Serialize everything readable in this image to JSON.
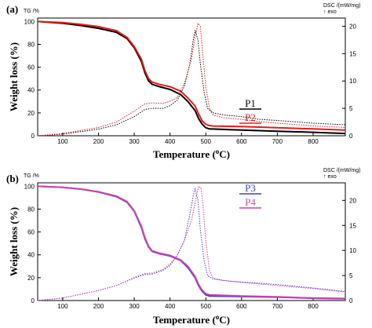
{
  "chart_data": [
    {
      "type": "line",
      "panel_label": "(a)",
      "xlabel_main": "Temperature (",
      "xlabel_sup": "o",
      "xlabel_tail": "C)",
      "ylabel": "Weight loss (%)",
      "left_unit": "TG /%",
      "right_unit": "DSC /(mW/mg)",
      "right_unit2": "↑ exo",
      "xlim": [
        30,
        890
      ],
      "ylim": [
        0,
        103
      ],
      "y2lim": [
        0,
        21.5
      ],
      "x_ticks": [
        "100",
        "200",
        "300",
        "400",
        "500",
        "600",
        "700",
        "800"
      ],
      "y_ticks": [
        "0",
        "20",
        "40",
        "60",
        "80",
        "100"
      ],
      "y2_ticks": [
        "0",
        "5",
        "10",
        "15",
        "20"
      ],
      "series": [
        {
          "name": "P1",
          "color": "#000000",
          "kind": "TG",
          "x": [
            30,
            100,
            150,
            200,
            250,
            280,
            300,
            320,
            330,
            340,
            350,
            370,
            400,
            430,
            450,
            470,
            480,
            490,
            500,
            510,
            600,
            700,
            800,
            890
          ],
          "y": [
            100,
            98.5,
            96.5,
            94,
            90.5,
            85,
            77,
            65,
            55,
            48,
            45,
            43,
            40.5,
            36,
            30,
            22,
            15,
            10,
            7,
            6,
            5,
            4,
            3,
            2
          ]
        },
        {
          "name": "P2",
          "color": "#e41a1c",
          "kind": "TG",
          "x": [
            30,
            100,
            150,
            200,
            250,
            280,
            300,
            320,
            330,
            340,
            350,
            370,
            400,
            430,
            450,
            470,
            480,
            490,
            500,
            510,
            520,
            600,
            700,
            800,
            890
          ],
          "y": [
            100,
            99,
            97.5,
            95.5,
            92,
            86,
            78,
            67,
            57,
            50,
            47,
            45,
            43,
            39,
            33,
            26,
            19,
            13,
            10,
            9,
            8.5,
            8,
            7,
            6,
            5
          ]
        },
        {
          "name": "",
          "color": "#000000",
          "kind": "DSC",
          "x": [
            30,
            100,
            200,
            250,
            300,
            330,
            350,
            380,
            400,
            420,
            440,
            455,
            465,
            470,
            478,
            485,
            495,
            505,
            520,
            550,
            600,
            650,
            700,
            800,
            890
          ],
          "y": [
            0,
            0.3,
            1.2,
            2,
            3.5,
            4.8,
            5,
            5,
            5.5,
            6.5,
            9,
            13,
            17.5,
            19.3,
            17.5,
            13,
            8,
            5,
            4.2,
            3.8,
            3.5,
            3,
            2.8,
            2.3,
            2
          ]
        },
        {
          "name": "",
          "color": "#e41a1c",
          "kind": "DSC",
          "x": [
            30,
            100,
            200,
            250,
            300,
            330,
            350,
            380,
            400,
            420,
            440,
            460,
            470,
            478,
            485,
            490,
            500,
            510,
            520,
            550,
            600,
            650,
            700,
            800,
            890
          ],
          "y": [
            0,
            0.4,
            1.5,
            2.5,
            4.5,
            5.8,
            6,
            5.9,
            6.3,
            7,
            9.5,
            14,
            18,
            20.5,
            20,
            16,
            9,
            5,
            3.8,
            3.3,
            3,
            2.6,
            2.3,
            1.8,
            1.5
          ]
        }
      ]
    },
    {
      "type": "line",
      "panel_label": "(b)",
      "xlabel_main": "Temperature (",
      "xlabel_sup": "o",
      "xlabel_tail": "C)",
      "ylabel": "Weight loss (%)",
      "left_unit": "TG /%",
      "right_unit": "DSC /(mW/mg)",
      "right_unit2": "↑ exo",
      "xlim": [
        30,
        890
      ],
      "ylim": [
        0,
        103
      ],
      "y2lim": [
        0,
        23.5
      ],
      "x_ticks": [
        "100",
        "200",
        "300",
        "400",
        "500",
        "600",
        "700",
        "800"
      ],
      "y_ticks": [
        "0",
        "20",
        "40",
        "60",
        "80",
        "100"
      ],
      "y2_ticks": [
        "0",
        "5",
        "10",
        "15",
        "20"
      ],
      "series": [
        {
          "name": "P3",
          "color": "#3f3fd0",
          "kind": "TG",
          "x": [
            30,
            100,
            150,
            200,
            250,
            280,
            300,
            320,
            330,
            340,
            350,
            370,
            400,
            430,
            450,
            470,
            480,
            490,
            500,
            510,
            600,
            700,
            800,
            890
          ],
          "y": [
            100,
            99,
            97.5,
            95,
            91,
            86,
            78,
            64,
            54,
            47,
            43,
            41,
            39,
            35,
            29,
            20,
            13,
            8,
            5,
            4,
            3.5,
            3,
            2,
            1.5
          ]
        },
        {
          "name": "P4",
          "color": "#cc44aa",
          "kind": "TG",
          "x": [
            30,
            100,
            150,
            200,
            250,
            280,
            300,
            320,
            330,
            340,
            350,
            370,
            400,
            430,
            450,
            470,
            480,
            490,
            500,
            510,
            600,
            700,
            800,
            890
          ],
          "y": [
            100,
            99,
            97.6,
            95.2,
            91.4,
            86.5,
            78.5,
            65,
            55,
            47.5,
            43.5,
            41.5,
            39.5,
            35.5,
            30,
            21,
            14,
            9,
            6,
            5,
            4,
            3.2,
            2.2,
            1.8
          ]
        },
        {
          "name": "",
          "color": "#3f3fd0",
          "kind": "DSC",
          "x": [
            30,
            100,
            200,
            250,
            300,
            330,
            350,
            380,
            400,
            420,
            440,
            455,
            465,
            470,
            478,
            485,
            495,
            505,
            520,
            550,
            600,
            700,
            800,
            890
          ],
          "y": [
            0,
            0.5,
            2,
            3,
            4.5,
            5.2,
            5.3,
            6,
            7,
            9,
            12,
            17,
            21,
            22.3,
            20,
            14,
            8,
            5,
            4.3,
            4,
            3.7,
            3.2,
            2.5,
            1.8
          ]
        },
        {
          "name": "",
          "color": "#cc44aa",
          "kind": "DSC",
          "x": [
            30,
            100,
            200,
            250,
            300,
            330,
            350,
            380,
            400,
            420,
            440,
            460,
            470,
            480,
            487,
            492,
            500,
            510,
            520,
            550,
            600,
            700,
            800,
            890
          ],
          "y": [
            0,
            0.5,
            2,
            3,
            4.6,
            5.4,
            5.5,
            6.2,
            7.3,
            9,
            12,
            16,
            19.5,
            22.8,
            22.5,
            19,
            12,
            6,
            4.5,
            4,
            3.6,
            3,
            2.4,
            1.7
          ]
        }
      ]
    }
  ]
}
